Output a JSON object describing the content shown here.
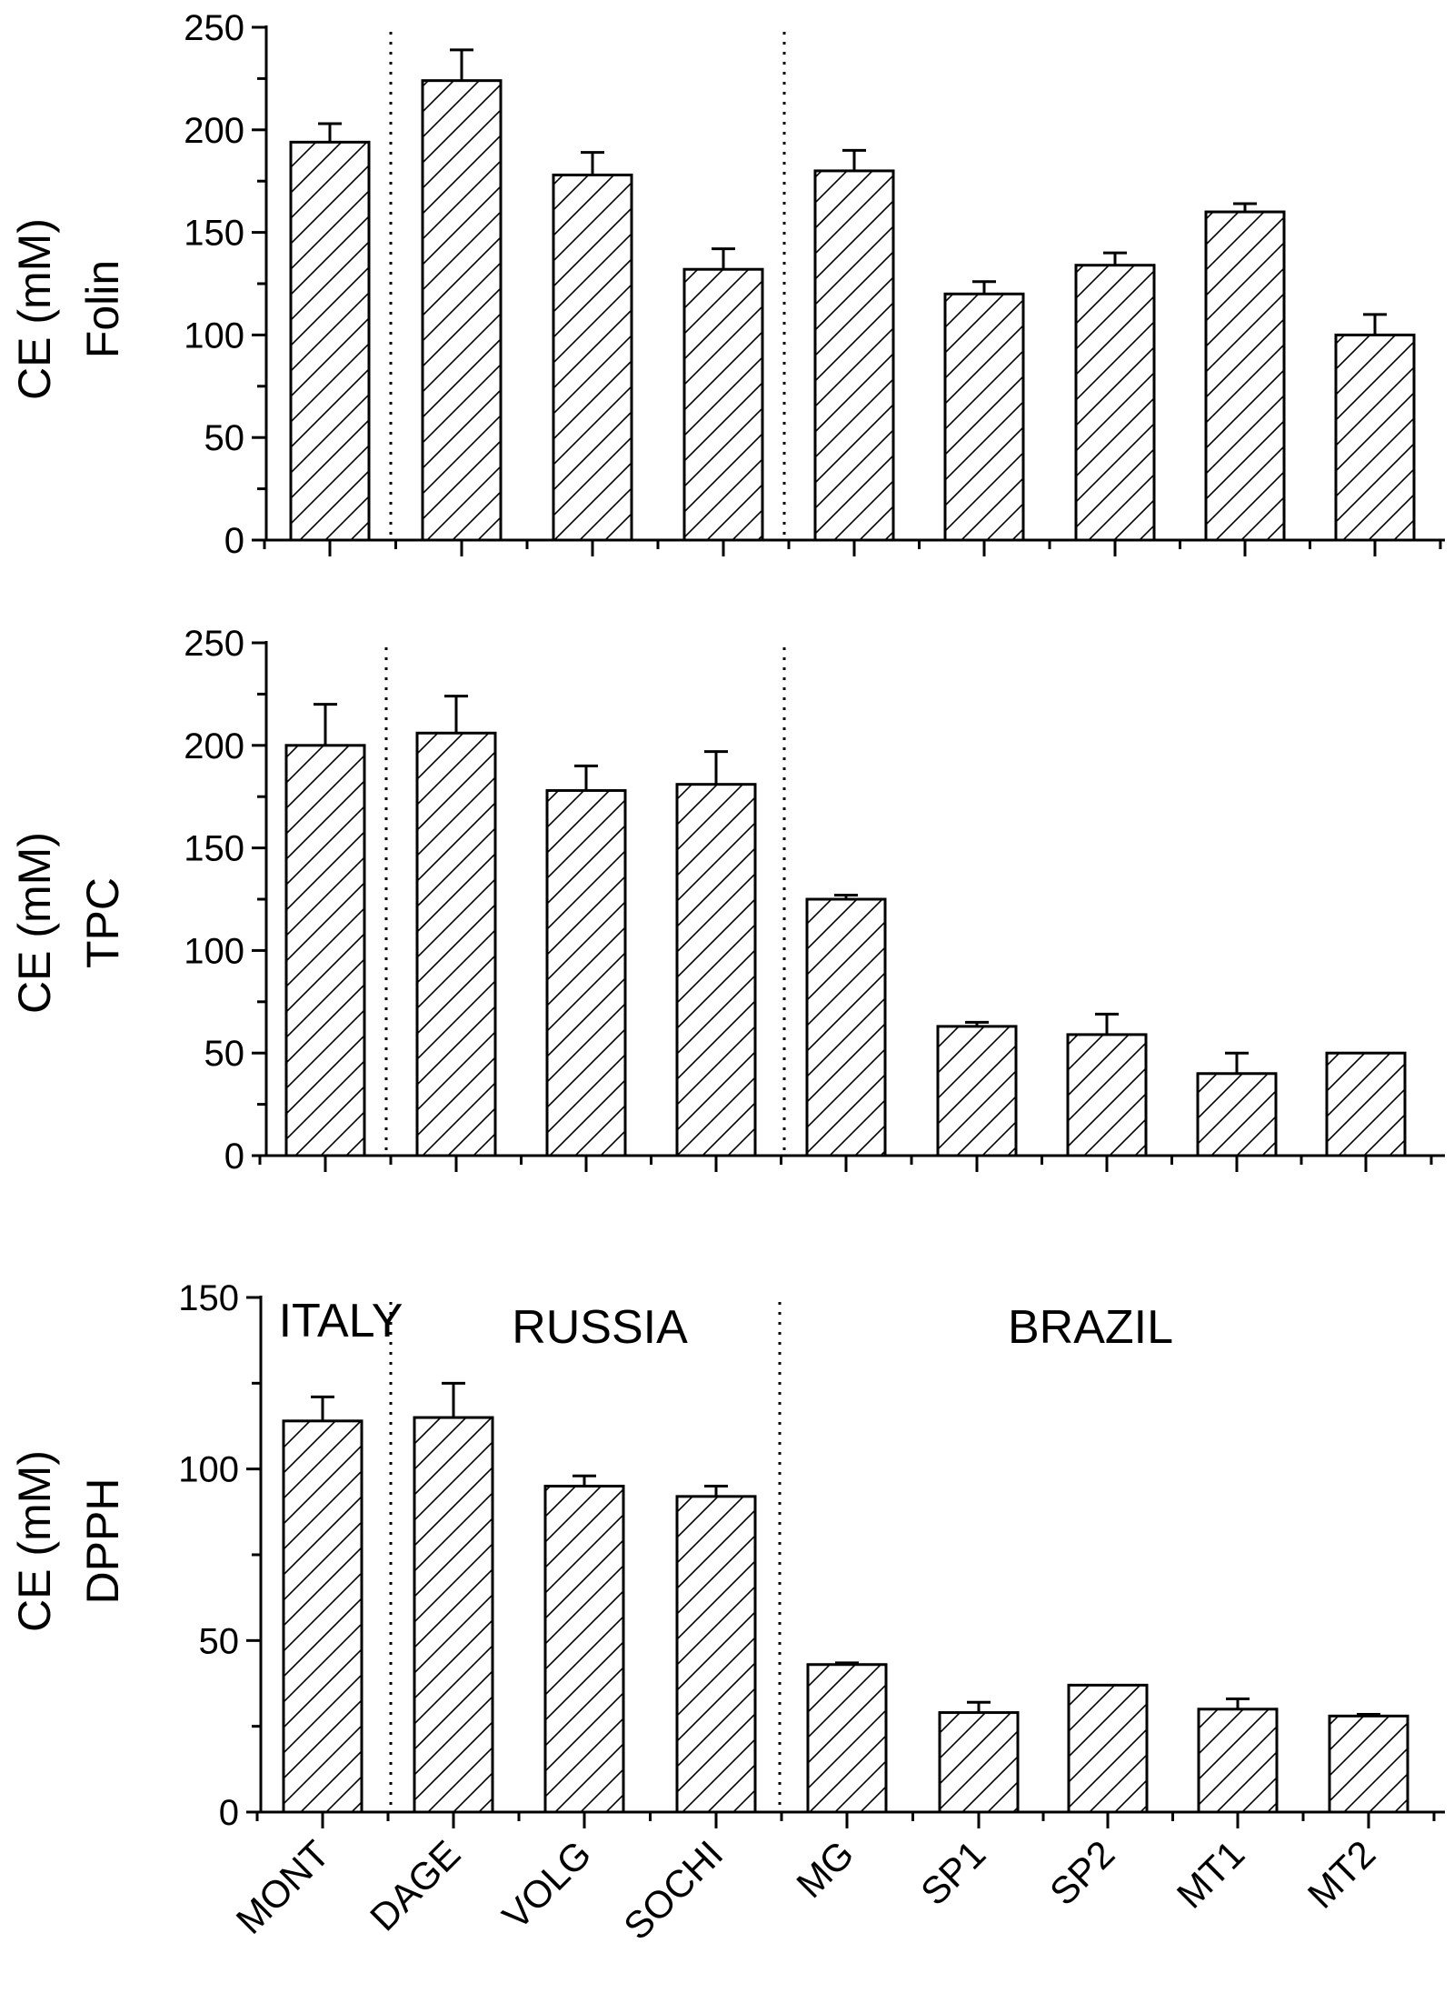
{
  "chart_data": [
    {
      "type": "bar",
      "categories": [
        "MONT",
        "DAGE",
        "VOLG",
        "SOCHI",
        "MG",
        "SP1",
        "SP2",
        "MT1",
        "MT2"
      ],
      "values": [
        194,
        224,
        178,
        132,
        180,
        120,
        134,
        160,
        100
      ],
      "errors": [
        9,
        15,
        11,
        10,
        10,
        6,
        6,
        4,
        10
      ],
      "ylabel": [
        "CE (mM)",
        "Folin"
      ],
      "ylim": [
        0,
        250
      ],
      "yticks": [
        0,
        50,
        100,
        150,
        200,
        250
      ],
      "bar_fill": "diagonal hatch",
      "grid": false,
      "group_separators_after": [
        "MONT",
        "SOCHI"
      ]
    },
    {
      "type": "bar",
      "categories": [
        "MONT",
        "DAGE",
        "VOLG",
        "SOCHI",
        "MG",
        "SP1",
        "SP2",
        "MT1",
        "MT2"
      ],
      "values": [
        200,
        206,
        178,
        181,
        125,
        63,
        59,
        40,
        50
      ],
      "errors": [
        20,
        18,
        12,
        16,
        2,
        2,
        10,
        10,
        0
      ],
      "ylabel": [
        "CE (mM)",
        "TPC"
      ],
      "ylim": [
        0,
        250
      ],
      "yticks": [
        0,
        50,
        100,
        150,
        200,
        250
      ],
      "bar_fill": "diagonal hatch",
      "grid": false,
      "group_separators_after": [
        "MONT",
        "SOCHI"
      ]
    },
    {
      "type": "bar",
      "categories": [
        "MONT",
        "DAGE",
        "VOLG",
        "SOCHI",
        "MG",
        "SP1",
        "SP2",
        "MT1",
        "MT2"
      ],
      "values": [
        114,
        115,
        95,
        92,
        43,
        29,
        37,
        30,
        28
      ],
      "errors": [
        7,
        10,
        3,
        3,
        0.5,
        3,
        0,
        3,
        0.5
      ],
      "ylabel": [
        "CE (mM)",
        "DPPH"
      ],
      "ylim": [
        0,
        150
      ],
      "yticks": [
        0,
        50,
        100,
        150
      ],
      "bar_fill": "diagonal hatch",
      "grid": false,
      "group_separators_after": [
        "MONT",
        "SOCHI"
      ],
      "region_labels": [
        "ITALY",
        "RUSSIA",
        "BRAZIL"
      ]
    }
  ],
  "colors": {
    "axis": "#000000",
    "bar_fill": "#ffffff",
    "hatch": "#000000",
    "background": "#ffffff"
  }
}
